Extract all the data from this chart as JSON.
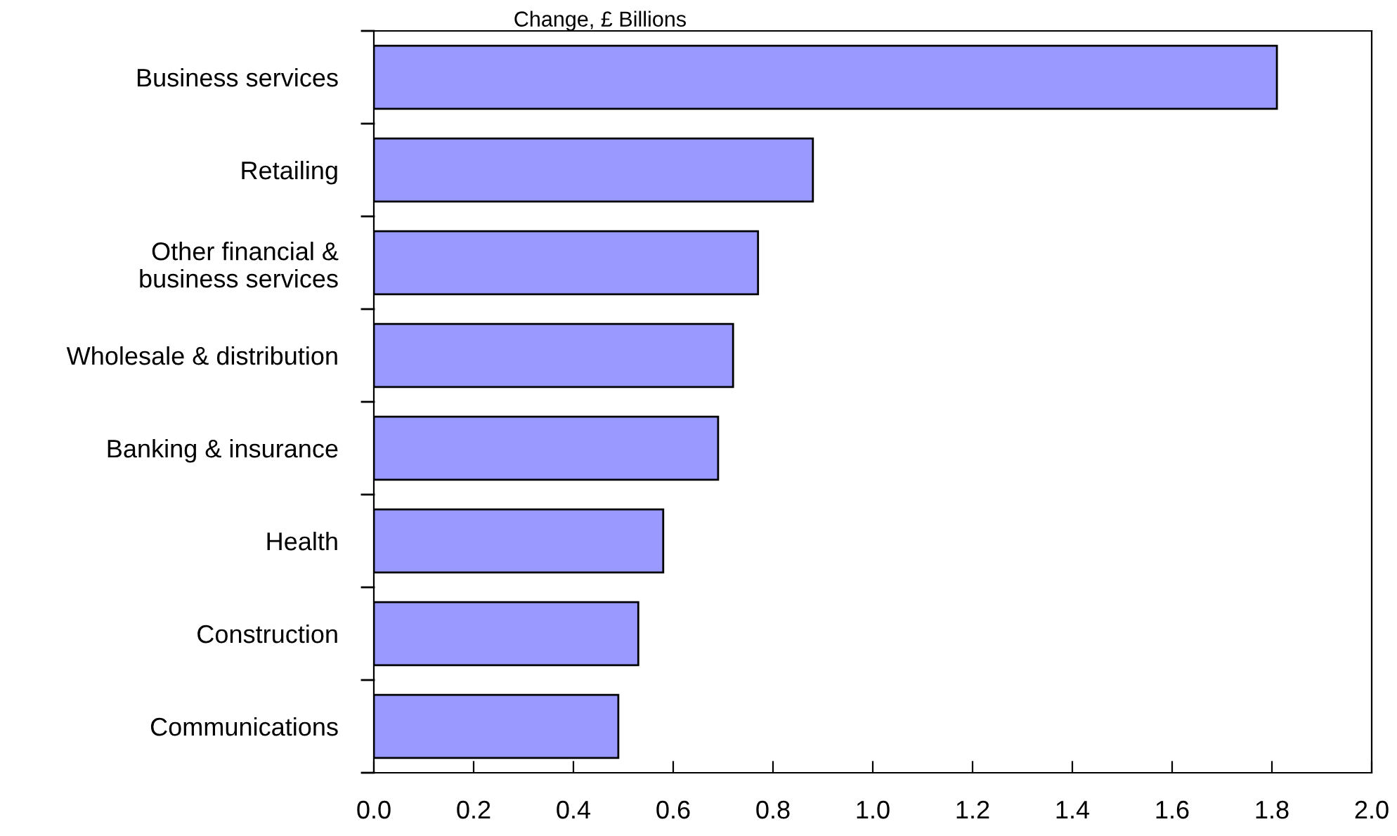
{
  "chart_data": {
    "type": "bar",
    "orientation": "horizontal",
    "title": "Change, £ Billions",
    "categories": [
      "Business services",
      "Retailing",
      "Other financial &\nbusiness services",
      "Wholesale & distribution",
      "Banking & insurance",
      "Health",
      "Construction",
      "Communications"
    ],
    "values": [
      1.81,
      0.88,
      0.77,
      0.72,
      0.69,
      0.58,
      0.53,
      0.49
    ],
    "color": "#9999ff",
    "xlim": [
      0,
      2.0
    ],
    "xticks": [
      {
        "value": 0,
        "label": "0.0"
      },
      {
        "value": 0.2,
        "label": "0.2"
      },
      {
        "value": 0.4,
        "label": "0.4"
      },
      {
        "value": 0.6,
        "label": "0.6"
      },
      {
        "value": 0.8,
        "label": "0.8"
      },
      {
        "value": 1.0,
        "label": "1.0"
      },
      {
        "value": 1.2,
        "label": "1.2"
      },
      {
        "value": 1.4,
        "label": "1.4"
      },
      {
        "value": 1.6,
        "label": "1.6"
      },
      {
        "value": 1.8,
        "label": "1.8"
      },
      {
        "value": 2.0,
        "label": "2.0"
      }
    ],
    "grid": false,
    "legend": false
  }
}
